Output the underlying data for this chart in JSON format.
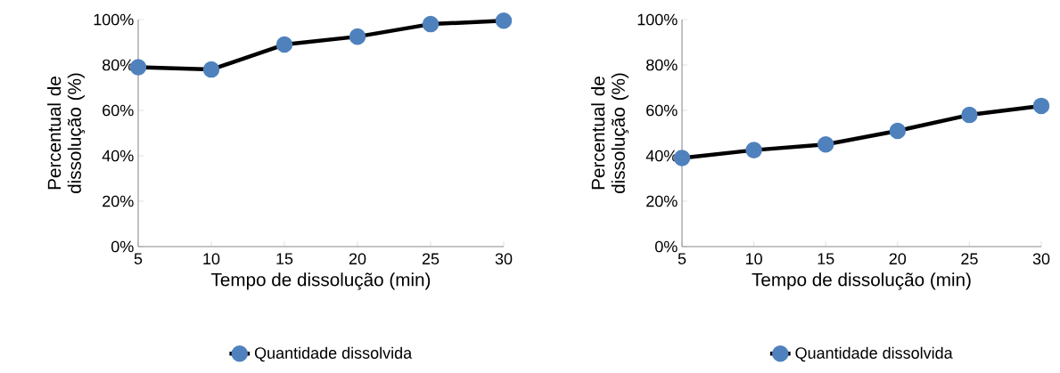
{
  "chart_data": [
    {
      "type": "line",
      "xlabel": "Tempo de dissolução (min)",
      "ylabel": "Percentual de dissolução (%)",
      "x": [
        5,
        10,
        15,
        20,
        25,
        30
      ],
      "xlim": [
        5,
        30
      ],
      "xticks": [
        5,
        10,
        15,
        20,
        25,
        30
      ],
      "ylim": [
        0,
        100
      ],
      "yticks": [
        {
          "value": 0,
          "label": "0%"
        },
        {
          "value": 20,
          "label": "20%"
        },
        {
          "value": 40,
          "label": "40%"
        },
        {
          "value": 60,
          "label": "60%"
        },
        {
          "value": 80,
          "label": "80%"
        },
        {
          "value": 100,
          "label": "100%"
        }
      ],
      "marker": "circle",
      "legend": "bottom",
      "series": [
        {
          "name": "Quantidade dissolvida",
          "color": "#000000",
          "values": [
            79,
            78,
            89,
            92.5,
            98,
            99.5
          ]
        }
      ]
    },
    {
      "type": "line",
      "xlabel": "Tempo de dissolução (min)",
      "ylabel": "Percentual de dissolução (%)",
      "x": [
        5,
        10,
        15,
        20,
        25,
        30
      ],
      "xlim": [
        5,
        30
      ],
      "xticks": [
        5,
        10,
        15,
        20,
        25,
        30
      ],
      "ylim": [
        0,
        100
      ],
      "yticks": [
        {
          "value": 0,
          "label": "0%"
        },
        {
          "value": 20,
          "label": "20%"
        },
        {
          "value": 40,
          "label": "40%"
        },
        {
          "value": 60,
          "label": "60%"
        },
        {
          "value": 80,
          "label": "80%"
        },
        {
          "value": 100,
          "label": "100%"
        }
      ],
      "marker": "circle",
      "legend": "bottom",
      "series": [
        {
          "name": "Quantidade dissolvida",
          "color": "#000000",
          "values": [
            39,
            42.5,
            45,
            51,
            58,
            62
          ]
        }
      ]
    }
  ]
}
